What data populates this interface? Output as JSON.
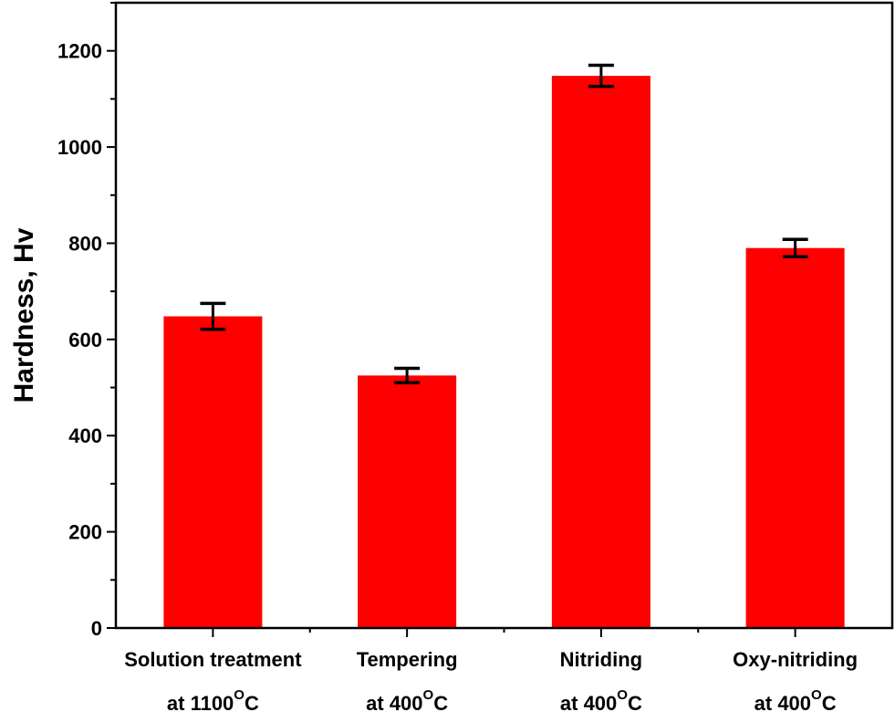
{
  "chart_data": {
    "type": "bar",
    "title": "",
    "xlabel": "",
    "ylabel": "Hardness, Hv",
    "ylim": [
      0,
      1300
    ],
    "yticks": [
      0,
      200,
      400,
      600,
      800,
      1000,
      1200
    ],
    "grid": false,
    "legend": "none",
    "bar_color": "#ff0000",
    "categories": [
      {
        "line1": "Solution treatment",
        "line2_pre": "at 1100",
        "line2_sup": "O",
        "line2_post": "C"
      },
      {
        "line1": "Tempering",
        "line2_pre": "at 400",
        "line2_sup": "O",
        "line2_post": "C"
      },
      {
        "line1": "Nitriding",
        "line2_pre": "at 400",
        "line2_sup": "O",
        "line2_post": "C"
      },
      {
        "line1": "Oxy-nitriding",
        "line2_pre": "at 400",
        "line2_sup": "O",
        "line2_post": "C"
      }
    ],
    "values": [
      648,
      525,
      1148,
      790
    ],
    "errors": [
      27,
      15,
      22,
      18
    ]
  }
}
